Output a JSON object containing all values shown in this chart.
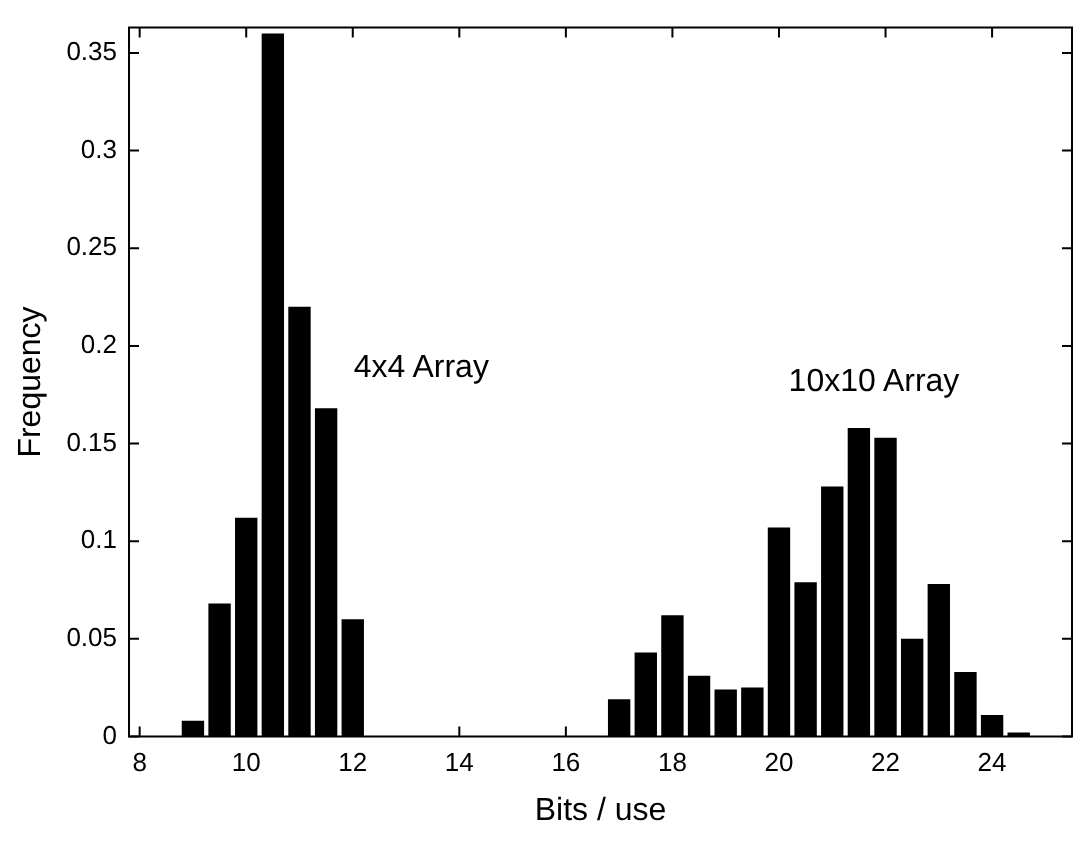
{
  "chart_data": {
    "type": "histogram",
    "xlabel": "Bits / use",
    "ylabel": "Frequency",
    "bins": [
      8.75,
      9.25,
      9.75,
      10.25,
      10.75,
      11.25,
      11.75,
      12.25,
      12.75,
      13.25,
      13.75,
      14.25,
      14.75,
      15.25,
      15.75,
      16.25,
      16.75,
      17.25,
      17.75,
      18.25,
      18.75,
      19.25,
      19.75,
      20.25,
      20.75,
      21.25,
      21.75,
      22.25,
      22.75,
      23.25,
      23.75,
      24.25,
      24.75
    ],
    "values": [
      0.008,
      0.068,
      0.112,
      0.36,
      0.22,
      0.168,
      0.06,
      0,
      0,
      0,
      0,
      0,
      0,
      0,
      0,
      0,
      0.019,
      0.043,
      0.062,
      0.031,
      0.024,
      0.025,
      0.107,
      0.079,
      0.128,
      0.158,
      0.153,
      0.05,
      0.078,
      0.033,
      0.011,
      0.002
    ],
    "color": "#000000",
    "xlim": [
      7.8,
      25.5
    ],
    "xticks": [
      8,
      10,
      12,
      14,
      16,
      18,
      20,
      22,
      24
    ],
    "ylim": [
      0,
      0.363
    ],
    "yticks": [
      0,
      0.05,
      0.1,
      0.15,
      0.2,
      0.25,
      0.3,
      0.35
    ],
    "grid": false,
    "legend": false,
    "annotations": [
      "4x4 Array",
      "10x10 Array"
    ]
  }
}
